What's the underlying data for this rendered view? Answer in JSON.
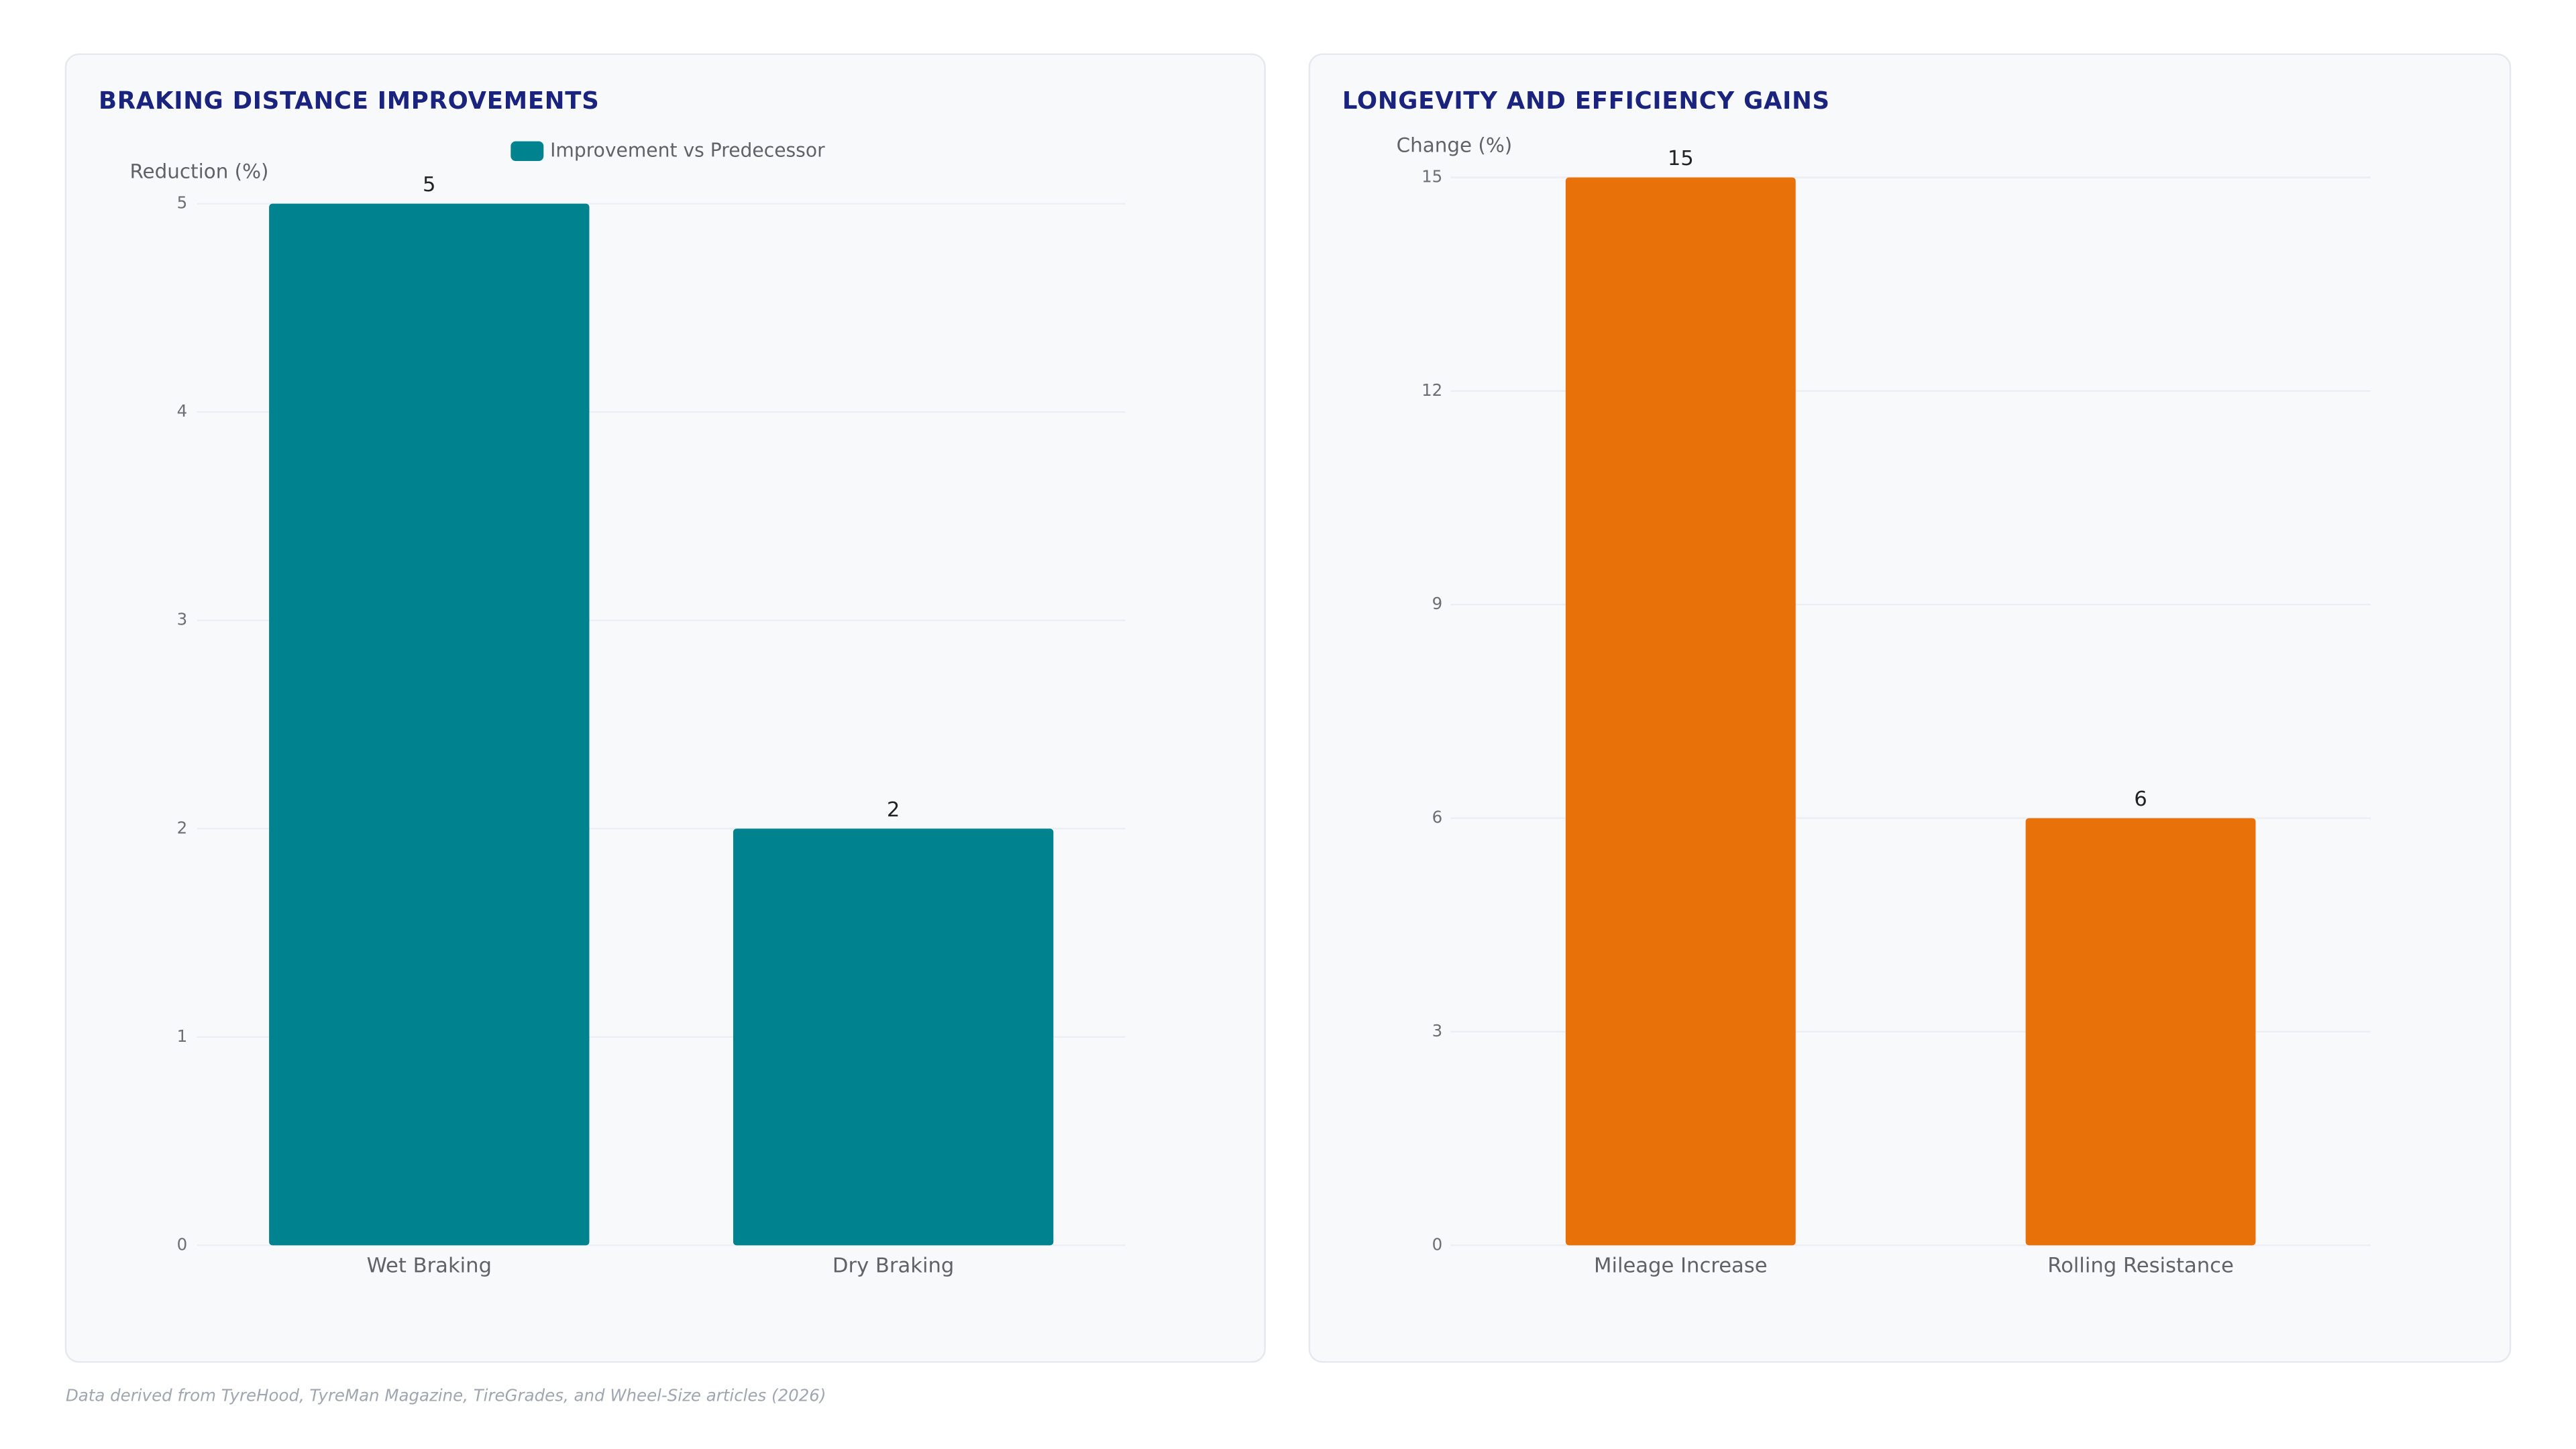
{
  "chart_data": [
    {
      "type": "bar",
      "title": "BRAKING DISTANCE IMPROVEMENTS",
      "y_label": "Reduction (%)",
      "categories": [
        "Wet Braking",
        "Dry Braking"
      ],
      "series": [
        {
          "name": "Improvement vs Predecessor",
          "color": "#00838f",
          "values": [
            5,
            2
          ]
        }
      ],
      "ylim": [
        0,
        5
      ],
      "yticks": [
        0,
        1,
        2,
        3,
        4,
        5
      ],
      "grid": true,
      "legend": "top"
    },
    {
      "type": "bar",
      "title": "LONGEVITY AND EFFICIENCY GAINS",
      "y_label": "Change (%)",
      "categories": [
        "Mileage Increase",
        "Rolling Resistance"
      ],
      "series": [
        {
          "color": "#e8710a",
          "values": [
            15,
            6
          ]
        }
      ],
      "ylim": [
        0,
        15
      ],
      "yticks": [
        0,
        3,
        6,
        9,
        12,
        15
      ],
      "grid": true
    }
  ],
  "footer": "Data derived from TyreHood, TyreMan Magazine, TireGrades, and Wheel-Size articles (2026)"
}
